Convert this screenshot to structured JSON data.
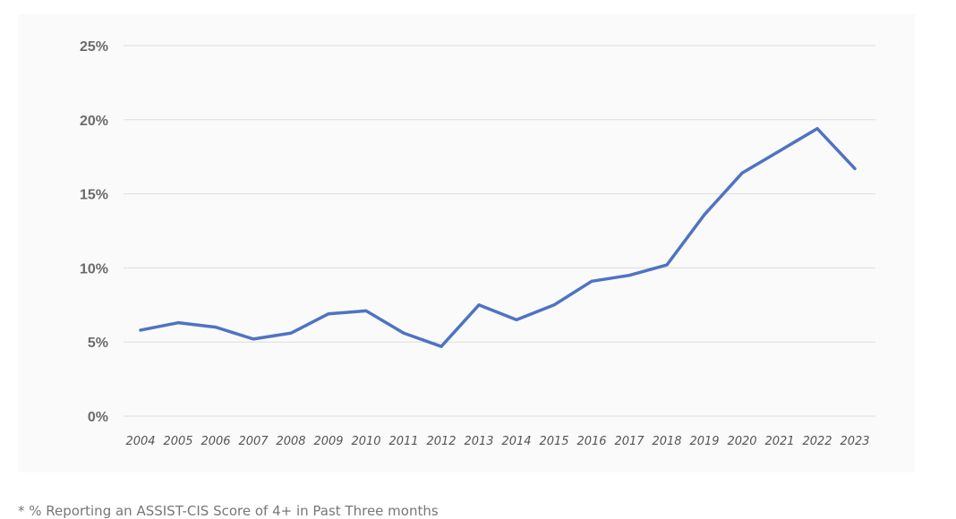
{
  "chart_data": {
    "type": "line",
    "x": [
      "2004",
      "2005",
      "2006",
      "2007",
      "2008",
      "2009",
      "2010",
      "2011",
      "2012",
      "2013",
      "2014",
      "2015",
      "2016",
      "2017",
      "2018",
      "2019",
      "2020",
      "2021",
      "2022",
      "2023"
    ],
    "series": [
      {
        "values": [
          5.8,
          6.3,
          6.0,
          5.2,
          5.6,
          6.9,
          7.1,
          5.6,
          4.7,
          7.5,
          6.5,
          7.5,
          9.1,
          9.5,
          10.2,
          13.6,
          16.4,
          17.9,
          19.4,
          16.7
        ],
        "color": "#4f73c3"
      }
    ],
    "title": "",
    "xlabel": "",
    "ylabel": "",
    "ylim": [
      0,
      25
    ],
    "yticks": [
      0,
      5,
      10,
      15,
      20,
      25
    ],
    "ytick_labels": [
      "0%",
      "5%",
      "10%",
      "15%",
      "20%",
      "25%"
    ],
    "grid": true,
    "legend": "none"
  },
  "footnote": "* % Reporting an ASSIST-CIS Score of 4+ in Past Three months"
}
